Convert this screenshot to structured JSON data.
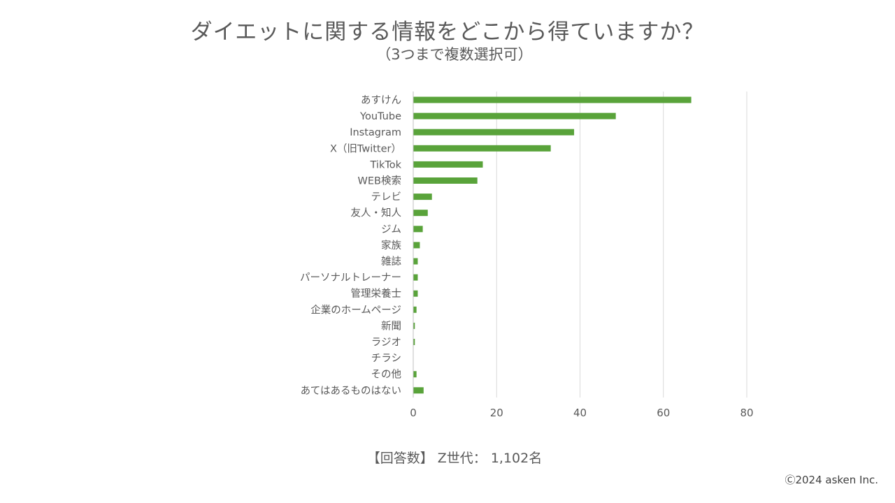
{
  "chart_data": {
    "type": "bar",
    "orientation": "horizontal",
    "title": "ダイエットに関する情報をどこから得ていますか？",
    "subtitle": "（3つまで複数選択可）",
    "categories": [
      "あすけん",
      "YouTube",
      "Instagram",
      "X（旧Twitter）",
      "TikTok",
      "WEB検索",
      "テレビ",
      "友人・知人",
      "ジム",
      "家族",
      "雑誌",
      "パーソナルトレーナー",
      "管理栄養士",
      "企業のホームページ",
      "新聞",
      "ラジオ",
      "チラシ",
      "その他",
      "あてはあるものはない"
    ],
    "values": [
      66.6,
      48.5,
      38.5,
      32.9,
      16.6,
      15.3,
      4.4,
      3.4,
      2.2,
      1.5,
      1.0,
      1.0,
      1.0,
      0.7,
      0.3,
      0.3,
      0.0,
      0.7,
      2.4
    ],
    "xlim": [
      0,
      80
    ],
    "xticks": [
      0,
      20,
      40,
      60,
      80
    ],
    "grid": true,
    "series_color": "#59a33a",
    "xlabel": "",
    "ylabel": ""
  },
  "footer": {
    "respondents": "【回答数】 Z世代： 1,102名",
    "copyright": "Ⓒ2024 asken Inc."
  }
}
